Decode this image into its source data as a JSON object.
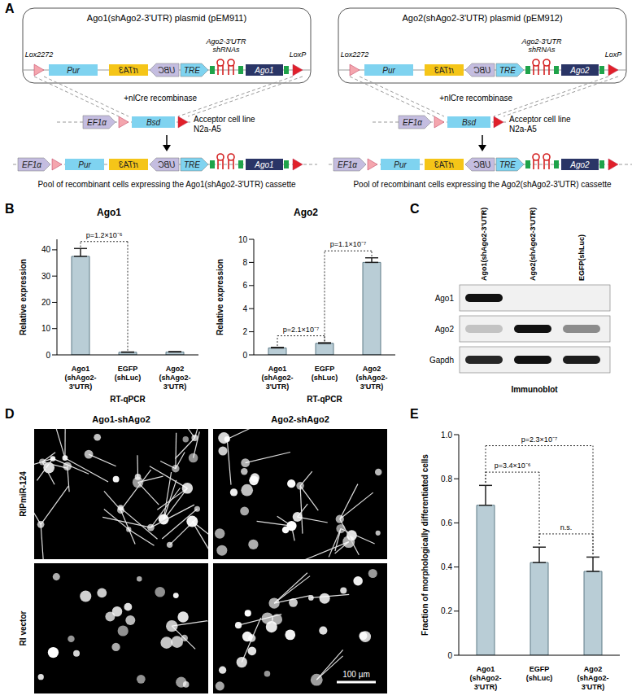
{
  "panels": [
    "A",
    "B",
    "C",
    "D",
    "E"
  ],
  "diagram": {
    "plasmids": [
      {
        "title": "Ago1(shAgo2-3'UTR) plasmid (pEM911)",
        "gene": "Ago1",
        "pool": "Pool of recombinant cells expressing the Ago1(shAgo2-3'UTR) cassette"
      },
      {
        "title": "Ago2(shAgo2-3'UTR) plasmid (pEM912)",
        "gene": "Ago2",
        "pool": "Pool of recombinant cells expressing the Ago2(shAgo2-3'UTR) cassette"
      }
    ],
    "lox2272": "Lox2272",
    "loxp": "LoxP",
    "pur": "Pur",
    "rtta3": "rtTA3",
    "ubc": "UBC",
    "tre": "TRE",
    "shrna": [
      "Ago2-3'UTR",
      "shRNAs"
    ],
    "ef1a": "EF1α",
    "bsd": "Bsd",
    "recombinase": "+nlCre recombinase",
    "acceptor": [
      "Acceptor cell line",
      "N2a-A5"
    ]
  },
  "immunoblot": {
    "columns": [
      "Ago1(shAgo2-3'UTR)",
      "Ago2(shAgo2-3'UTR)",
      "EGFP(shLuc)"
    ],
    "rows": [
      {
        "name": "Ago1",
        "signal": [
          1,
          0,
          0
        ]
      },
      {
        "name": "Ago2",
        "signal": [
          0.2,
          1,
          0.45
        ]
      },
      {
        "name": "Gapdh",
        "signal": [
          0.9,
          1,
          0.95
        ]
      }
    ],
    "caption": "Immunoblot"
  },
  "micrographs": {
    "columns": [
      "Ago1-shAgo2",
      "Ago2-shAgo2"
    ],
    "rows": [
      "RIPmiR-124",
      "RI vector"
    ],
    "scale_bar": "100 µm"
  },
  "chart_data": [
    {
      "type": "bar",
      "title": "Ago1",
      "y_label": "Relative expression",
      "x_label": "RT-qPCR",
      "categories": [
        "Ago1 (shAgo2-3'UTR)",
        "EGFP (shLuc)",
        "Ago2 (shAgo2-3'UTR)"
      ],
      "values": [
        37.5,
        1.0,
        1.1
      ],
      "errors": [
        3,
        0.1,
        0.15
      ],
      "color": "#b9cdd6",
      "ylim": [
        0,
        44
      ],
      "yticks": [
        0,
        10,
        20,
        30,
        40
      ],
      "annotations": [
        {
          "from": 0,
          "to": 1,
          "label": "p=1.2×10⁻⁶"
        }
      ]
    },
    {
      "type": "bar",
      "title": "Ago2",
      "y_label": "Relative expression",
      "x_label": "RT-qPCR",
      "categories": [
        "Ago1 (shAgo2-3'UTR)",
        "EGFP (shLuc)",
        "Ago2 (shAgo2-3'UTR)"
      ],
      "values": [
        0.6,
        1.0,
        8.0
      ],
      "errors": [
        0.05,
        0.05,
        0.4
      ],
      "color": "#b9cdd6",
      "ylim": [
        0,
        10
      ],
      "yticks": [
        0,
        2,
        4,
        6,
        8,
        10
      ],
      "annotations": [
        {
          "from": 0,
          "to": 1,
          "label": "p=2.1×10⁻⁷"
        },
        {
          "from": 1,
          "to": 2,
          "label": "p=1.1×10⁻⁷"
        }
      ]
    },
    {
      "type": "bar",
      "y_label": "Fraction of morphologically differentiated cells",
      "categories": [
        "Ago1 (shAgo2-3'UTR)",
        "EGFP (shLuc)",
        "Ago2 (shAgo2-3'UTR)"
      ],
      "values": [
        0.68,
        0.42,
        0.38
      ],
      "errors": [
        0.09,
        0.07,
        0.065
      ],
      "color": "#b9cdd6",
      "ylim": [
        0,
        1
      ],
      "yticks": [
        0,
        0.2,
        0.4,
        0.6,
        0.8,
        {
          "value": 1,
          "label": "1.0"
        }
      ],
      "annotations": [
        {
          "from": 0,
          "to": 1,
          "label": "p=3.4×10⁻⁶"
        },
        {
          "from": 0,
          "to": 2,
          "label": "p=2.3×10⁻⁷"
        },
        {
          "from": 1,
          "to": 2,
          "label": "n.s."
        }
      ]
    }
  ]
}
